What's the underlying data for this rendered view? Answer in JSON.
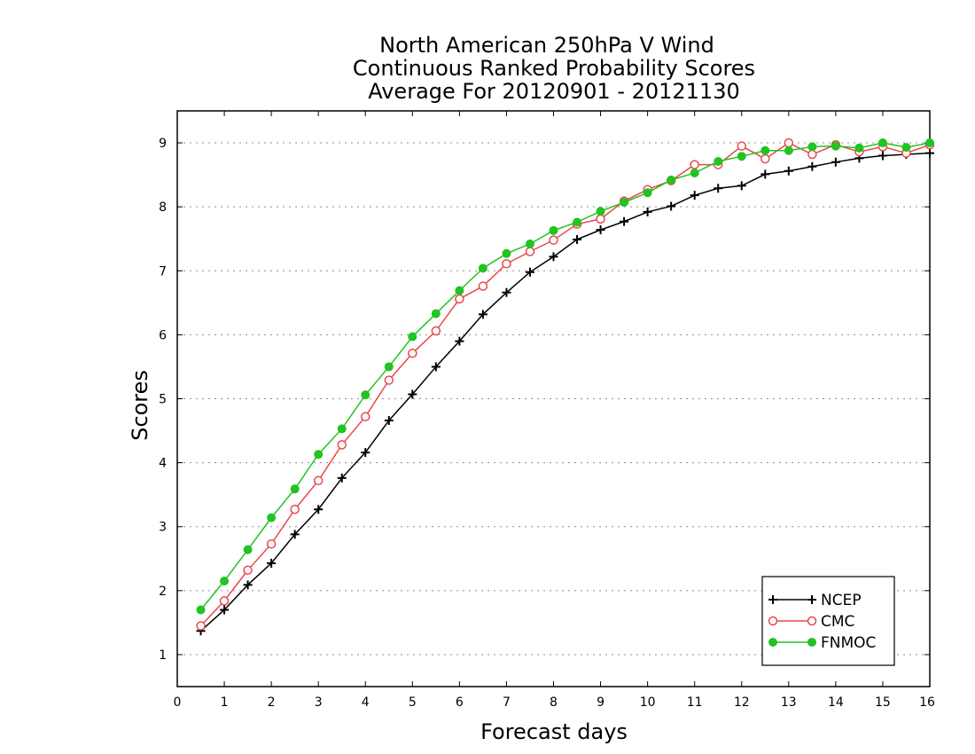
{
  "chart_data": {
    "type": "line",
    "title": [
      "North American 250hPa V Wind",
      "Continuous Ranked Probability Scores",
      "Average For 20120901 - 20121130"
    ],
    "xlabel": "Forecast days",
    "ylabel": "Scores",
    "xlim": [
      0,
      16
    ],
    "ylim": [
      0.5,
      9.5
    ],
    "xticks": [
      0,
      1,
      2,
      3,
      4,
      5,
      6,
      7,
      8,
      9,
      10,
      11,
      12,
      13,
      14,
      15,
      16
    ],
    "yticks": [
      1,
      2,
      3,
      4,
      5,
      6,
      7,
      8,
      9
    ],
    "grid": "horizontal-dotted",
    "legend_position": "bottom-right",
    "x": [
      0.5,
      1,
      1.5,
      2,
      2.5,
      3,
      3.5,
      4,
      4.5,
      5,
      5.5,
      6,
      6.5,
      7,
      7.5,
      8,
      8.5,
      9,
      9.5,
      10,
      10.5,
      11,
      11.5,
      12,
      12.5,
      13,
      13.5,
      14,
      14.5,
      15,
      15.5,
      16
    ],
    "series": [
      {
        "name": "NCEP",
        "color": "#000000",
        "marker": "plus",
        "values": [
          1.37,
          1.7,
          2.09,
          2.43,
          2.88,
          3.27,
          3.76,
          4.16,
          4.66,
          5.07,
          5.5,
          5.9,
          6.32,
          6.66,
          6.98,
          7.22,
          7.49,
          7.64,
          7.77,
          7.92,
          8.01,
          8.18,
          8.29,
          8.33,
          8.51,
          8.56,
          8.63,
          8.7,
          8.76,
          8.8,
          8.82,
          8.84
        ]
      },
      {
        "name": "CMC",
        "color": "#e8484d",
        "marker": "open-circle",
        "values": [
          1.45,
          1.84,
          2.32,
          2.73,
          3.27,
          3.72,
          4.28,
          4.72,
          5.29,
          5.71,
          6.06,
          6.56,
          6.76,
          7.11,
          7.3,
          7.48,
          7.73,
          7.81,
          8.09,
          8.27,
          8.41,
          8.66,
          8.66,
          8.95,
          8.75,
          9.0,
          8.82,
          8.97,
          8.86,
          8.94,
          8.84,
          8.97
        ]
      },
      {
        "name": "FNMOC",
        "color": "#22c322",
        "marker": "filled-circle",
        "values": [
          1.7,
          2.15,
          2.64,
          3.14,
          3.59,
          4.13,
          4.53,
          5.06,
          5.5,
          5.97,
          6.33,
          6.69,
          7.04,
          7.27,
          7.42,
          7.63,
          7.76,
          7.93,
          8.07,
          8.22,
          8.42,
          8.53,
          8.71,
          8.79,
          8.88,
          8.88,
          8.94,
          8.95,
          8.92,
          9.0,
          8.93,
          9.0
        ]
      }
    ]
  }
}
